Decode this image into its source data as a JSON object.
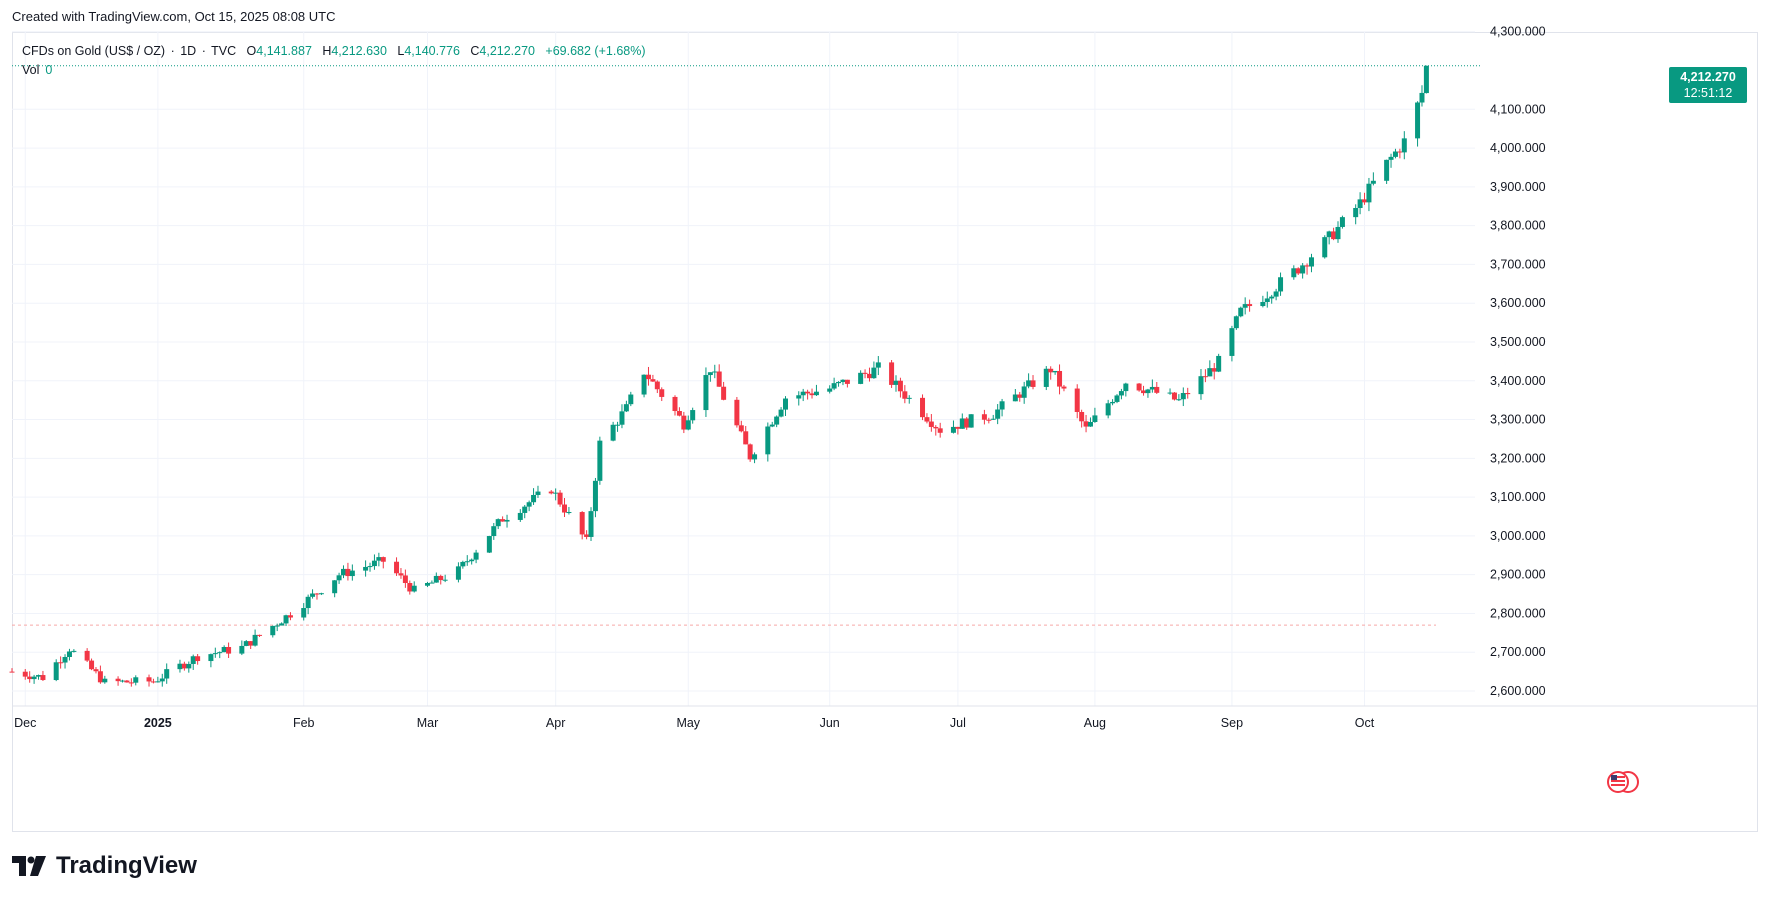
{
  "header": {
    "created_text": "Created with TradingView.com, Oct 15, 2025 08:08 UTC"
  },
  "legend": {
    "symbol": "CFDs on Gold (US$ / OZ)",
    "interval": "1D",
    "source": "TVC",
    "open_label": "O",
    "open": "4,141.887",
    "high_label": "H",
    "high": "4,212.630",
    "low_label": "L",
    "low": "4,140.776",
    "close_label": "C",
    "close": "4,212.270",
    "change": "+69.682 (+1.68%)",
    "vol_label": "Vol",
    "vol_value": "0"
  },
  "price_tag": {
    "price": "4,212.270",
    "countdown": "12:51:12"
  },
  "brand": {
    "name": "TradingView"
  },
  "colors": {
    "up": "#089981",
    "down": "#f23645",
    "grid": "#f0f3fa",
    "axis_text": "#131722",
    "ref_line": "#f7a9a7"
  },
  "chart_data": {
    "type": "candlestick",
    "title": "CFDs on Gold (US$ / OZ) · 1D · TVC",
    "y_ticks": [
      "2,600.000",
      "2,700.000",
      "2,800.000",
      "2,900.000",
      "3,000.000",
      "3,100.000",
      "3,200.000",
      "3,300.000",
      "3,400.000",
      "3,500.000",
      "3,600.000",
      "3,700.000",
      "3,800.000",
      "3,900.000",
      "4,000.000",
      "4,100.000",
      "4,300.000"
    ],
    "y_tick_values": [
      2600,
      2700,
      2800,
      2900,
      3000,
      3100,
      3200,
      3300,
      3400,
      3500,
      3600,
      3700,
      3800,
      3900,
      4000,
      4100,
      4300
    ],
    "x_ticks": [
      "Dec",
      "2025",
      "Feb",
      "Mar",
      "Apr",
      "May",
      "Jun",
      "Jul",
      "Aug",
      "Sep",
      "Oct"
    ],
    "x_tick_dates": [
      "2024-12-02",
      "2025-01-01",
      "2025-02-03",
      "2025-03-03",
      "2025-04-01",
      "2025-05-01",
      "2025-06-02",
      "2025-07-01",
      "2025-08-01",
      "2025-09-01",
      "2025-10-01"
    ],
    "ylim": [
      2560,
      4300
    ],
    "last_price": 4212.27,
    "reference_line": 2770,
    "grid": true,
    "close_series": [
      {
        "date": "2024-11-29",
        "close": 2650
      },
      {
        "date": "2024-12-06",
        "close": 2635
      },
      {
        "date": "2024-12-12",
        "close": 2710
      },
      {
        "date": "2024-12-20",
        "close": 2622
      },
      {
        "date": "2024-12-31",
        "close": 2625
      },
      {
        "date": "2025-01-10",
        "close": 2690
      },
      {
        "date": "2025-01-20",
        "close": 2712
      },
      {
        "date": "2025-01-31",
        "close": 2800
      },
      {
        "date": "2025-02-11",
        "close": 2900
      },
      {
        "date": "2025-02-21",
        "close": 2935
      },
      {
        "date": "2025-02-28",
        "close": 2858
      },
      {
        "date": "2025-03-10",
        "close": 2910
      },
      {
        "date": "2025-03-20",
        "close": 3045
      },
      {
        "date": "2025-03-31",
        "close": 3122
      },
      {
        "date": "2025-04-08",
        "close": 2984
      },
      {
        "date": "2025-04-11",
        "close": 3238
      },
      {
        "date": "2025-04-17",
        "close": 3328
      },
      {
        "date": "2025-04-21",
        "close": 3424
      },
      {
        "date": "2025-04-30",
        "close": 3290
      },
      {
        "date": "2025-05-06",
        "close": 3433
      },
      {
        "date": "2025-05-15",
        "close": 3205
      },
      {
        "date": "2025-05-23",
        "close": 3357
      },
      {
        "date": "2025-06-02",
        "close": 3380
      },
      {
        "date": "2025-06-13",
        "close": 3432
      },
      {
        "date": "2025-06-27",
        "close": 3274
      },
      {
        "date": "2025-07-09",
        "close": 3315
      },
      {
        "date": "2025-07-22",
        "close": 3430
      },
      {
        "date": "2025-07-30",
        "close": 3274
      },
      {
        "date": "2025-08-08",
        "close": 3398
      },
      {
        "date": "2025-08-20",
        "close": 3348
      },
      {
        "date": "2025-08-29",
        "close": 3448
      },
      {
        "date": "2025-09-03",
        "close": 3578
      },
      {
        "date": "2025-09-09",
        "close": 3625
      },
      {
        "date": "2025-09-16",
        "close": 3690
      },
      {
        "date": "2025-09-23",
        "close": 3768
      },
      {
        "date": "2025-09-30",
        "close": 3858
      },
      {
        "date": "2025-10-06",
        "close": 3960
      },
      {
        "date": "2025-10-10",
        "close": 4017
      },
      {
        "date": "2025-10-13",
        "close": 4110
      },
      {
        "date": "2025-10-14",
        "close": 4142
      },
      {
        "date": "2025-10-15",
        "close": 4212.27
      }
    ],
    "last_candle": {
      "date": "2025-10-15",
      "open": 4141.887,
      "high": 4212.63,
      "low": 4140.776,
      "close": 4212.27
    }
  }
}
